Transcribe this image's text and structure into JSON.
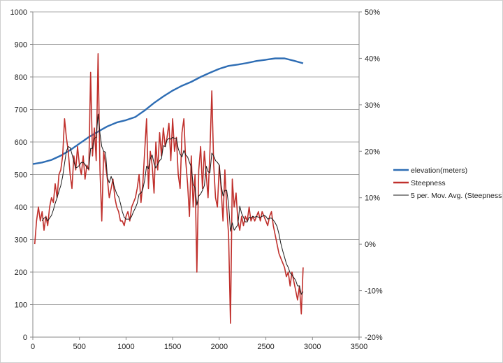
{
  "chart_data": {
    "type": "line",
    "title": "",
    "xlabel": "",
    "ylabel": "",
    "y2label": "",
    "xlim": [
      0,
      3500
    ],
    "x_ticks": [
      0,
      500,
      1000,
      1500,
      2000,
      2500,
      3000,
      3500
    ],
    "ylim": [
      0,
      1000
    ],
    "y_ticks": [
      0,
      100,
      200,
      300,
      400,
      500,
      600,
      700,
      800,
      900,
      1000
    ],
    "y2lim": [
      -0.2,
      0.5
    ],
    "y2_ticks": [
      -0.2,
      -0.1,
      0,
      0.1,
      0.2,
      0.3,
      0.4,
      0.5
    ],
    "y2_tick_labels": [
      "-20%",
      "-10%",
      "0%",
      "10%",
      "20%",
      "30%",
      "40%",
      "50%"
    ],
    "grid": "horizontal",
    "legend_position": "right",
    "series": [
      {
        "name": "elevation(meters)",
        "axis": "primary",
        "color": "#2e6db4",
        "x": [
          0,
          100,
          200,
          300,
          400,
          500,
          600,
          700,
          800,
          900,
          1000,
          1100,
          1200,
          1300,
          1400,
          1500,
          1600,
          1700,
          1800,
          1900,
          2000,
          2100,
          2200,
          2300,
          2400,
          2500,
          2600,
          2700,
          2800,
          2900
        ],
        "values": [
          532,
          537,
          545,
          558,
          575,
          595,
          615,
          632,
          648,
          660,
          667,
          677,
          697,
          720,
          740,
          758,
          773,
          785,
          800,
          813,
          825,
          834,
          838,
          843,
          849,
          853,
          857,
          857,
          850,
          842
        ]
      },
      {
        "name": "Steepness",
        "axis": "secondary",
        "color": "#c0302c",
        "x": [
          20,
          40,
          60,
          80,
          100,
          120,
          140,
          160,
          180,
          200,
          220,
          240,
          260,
          280,
          300,
          320,
          340,
          360,
          380,
          400,
          420,
          440,
          460,
          480,
          500,
          520,
          540,
          560,
          580,
          600,
          620,
          640,
          660,
          680,
          700,
          720,
          740,
          760,
          780,
          800,
          820,
          840,
          860,
          880,
          900,
          920,
          940,
          960,
          980,
          1000,
          1020,
          1040,
          1060,
          1080,
          1100,
          1120,
          1140,
          1160,
          1180,
          1200,
          1220,
          1240,
          1260,
          1280,
          1300,
          1320,
          1340,
          1360,
          1380,
          1400,
          1420,
          1440,
          1460,
          1480,
          1500,
          1520,
          1540,
          1560,
          1580,
          1600,
          1620,
          1640,
          1660,
          1680,
          1700,
          1720,
          1740,
          1760,
          1780,
          1800,
          1820,
          1840,
          1860,
          1880,
          1900,
          1920,
          1940,
          1960,
          1980,
          2000,
          2020,
          2040,
          2060,
          2080,
          2100,
          2120,
          2140,
          2160,
          2180,
          2200,
          2220,
          2240,
          2260,
          2280,
          2300,
          2320,
          2340,
          2360,
          2380,
          2400,
          2420,
          2440,
          2460,
          2480,
          2500,
          2520,
          2540,
          2560,
          2580,
          2600,
          2620,
          2640,
          2660,
          2680,
          2700,
          2720,
          2740,
          2760,
          2780,
          2800,
          2820,
          2840,
          2860,
          2880,
          2900
        ],
        "values": [
          0.0,
          0.05,
          0.08,
          0.05,
          0.07,
          0.03,
          0.06,
          0.04,
          0.08,
          0.1,
          0.09,
          0.13,
          0.1,
          0.15,
          0.16,
          0.19,
          0.27,
          0.23,
          0.2,
          0.15,
          0.12,
          0.19,
          0.16,
          0.21,
          0.17,
          0.15,
          0.19,
          0.14,
          0.17,
          0.16,
          0.37,
          0.19,
          0.25,
          0.18,
          0.41,
          0.16,
          0.05,
          0.2,
          0.17,
          0.14,
          0.1,
          0.12,
          0.14,
          0.1,
          0.08,
          0.07,
          0.05,
          0.05,
          0.04,
          0.06,
          0.07,
          0.05,
          0.08,
          0.09,
          0.1,
          0.12,
          0.15,
          0.09,
          0.13,
          0.2,
          0.27,
          0.12,
          0.2,
          0.17,
          0.11,
          0.22,
          0.16,
          0.24,
          0.19,
          0.25,
          0.21,
          0.23,
          0.26,
          0.18,
          0.27,
          0.2,
          0.23,
          0.15,
          0.12,
          0.24,
          0.27,
          0.18,
          0.13,
          0.06,
          0.19,
          0.08,
          0.15,
          -0.06,
          0.16,
          0.21,
          0.12,
          0.2,
          0.15,
          0.1,
          0.2,
          0.33,
          0.17,
          0.1,
          0.08,
          0.17,
          0.12,
          0.05,
          0.16,
          0.08,
          0.02,
          -0.17,
          0.14,
          0.08,
          0.11,
          0.05,
          0.03,
          0.06,
          0.04,
          0.06,
          0.05,
          0.08,
          0.05,
          0.06,
          0.05,
          0.06,
          0.07,
          0.05,
          0.07,
          0.06,
          0.05,
          0.04,
          0.06,
          0.07,
          0.04,
          0.02,
          0.0,
          -0.02,
          -0.03,
          -0.04,
          -0.05,
          -0.07,
          -0.06,
          -0.09,
          -0.06,
          -0.08,
          -0.1,
          -0.12,
          -0.09,
          -0.15,
          -0.05
        ]
      },
      {
        "name": "5 per. Mov. Avg. (Steepness)",
        "axis": "secondary",
        "color": "#1a1a1a",
        "moving_average_of": "Steepness",
        "period": 5
      }
    ]
  }
}
